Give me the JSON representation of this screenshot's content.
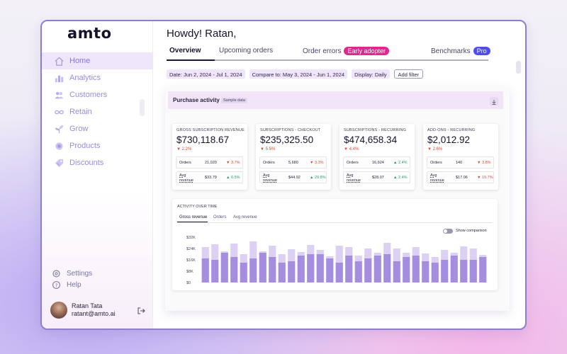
{
  "sidebar": {
    "logo": "amto",
    "nav": [
      {
        "label": "Home",
        "icon": "home-icon",
        "active": true
      },
      {
        "label": "Analytics",
        "icon": "bar-chart-icon"
      },
      {
        "label": "Customers",
        "icon": "users-icon"
      },
      {
        "label": "Retain",
        "icon": "infinity-icon"
      },
      {
        "label": "Grow",
        "icon": "sprout-icon"
      },
      {
        "label": "Products",
        "icon": "products-icon"
      },
      {
        "label": "Discounts",
        "icon": "tag-icon"
      }
    ],
    "settings_label": "Settings",
    "help_label": "Help",
    "user": {
      "name": "Ratan Tata",
      "email": "ratant@amto.ai"
    }
  },
  "header": {
    "greeting": "Howdy! Ratan,",
    "tabs": {
      "overview": "Overview",
      "upcoming": "Upcoming orders",
      "errors": "Order errors",
      "errors_badge": "Early adopter",
      "benchmarks": "Benchmarks",
      "benchmarks_badge": "Pro"
    }
  },
  "filters": {
    "date": "Date: Jun 2, 2024 - Jul 1, 2024",
    "compare": "Compare to: May 3, 2024 - Jun 1, 2024",
    "display": "Display: Daily",
    "add_filter": "Add filter"
  },
  "purchase": {
    "title": "Purchase activity",
    "badge": "Sample data"
  },
  "cards": [
    {
      "title": "GROSS SUBSCRIPTION REVENUE",
      "value": "$730,118.67",
      "change": "2.2%",
      "dir": "down",
      "rows": [
        {
          "label": "Orders",
          "value": "21,020",
          "change": "3.7%",
          "dir": "down"
        },
        {
          "label": "Avg revenue",
          "value": "$33.79",
          "change": "0.5%",
          "dir": "up"
        }
      ]
    },
    {
      "title": "SUBSCRIPTIONS - CHECKOUT",
      "value": "$235,325.50",
      "change": "5.5%",
      "dir": "down",
      "rows": [
        {
          "label": "Orders",
          "value": "5,680",
          "change": "3.3%",
          "dir": "down"
        },
        {
          "label": "Avg revenue",
          "value": "$44.92",
          "change": "29.8%",
          "dir": "up"
        }
      ]
    },
    {
      "title": "SUBSCRIPTIONS - RECURRING",
      "value": "$474,658.34",
      "change": "4.4%",
      "dir": "down",
      "rows": [
        {
          "label": "Orders",
          "value": "16,924",
          "change": "2.4%",
          "dir": "up"
        },
        {
          "label": "Avg revenue",
          "value": "$28.07",
          "change": "2.4%",
          "dir": "up"
        }
      ]
    },
    {
      "title": "ADD-ONS - RECURRING",
      "value": "$2,012.92",
      "change": "2.6%",
      "dir": "down",
      "rows": [
        {
          "label": "Orders",
          "value": "140",
          "change": "3.8%",
          "dir": "down"
        },
        {
          "label": "Avg revenue",
          "value": "$17.06",
          "change": "19.7%",
          "dir": "down"
        }
      ]
    }
  ],
  "activity": {
    "title": "ACTIVITY OVER TIME",
    "tabs": [
      "Gross revenue",
      "Orders",
      "Avg revenue"
    ],
    "toggle_label": "Show comparison"
  },
  "chart_data": {
    "type": "bar",
    "ylabels": [
      "$32K",
      "$24K",
      "$16K",
      "$8K",
      "$0"
    ],
    "ylim": [
      0,
      32000
    ],
    "series": [
      {
        "values": [
          25000,
          27000,
          22000,
          27500,
          20000,
          29000,
          22000,
          26000,
          20000,
          23500,
          21500,
          26500,
          23000,
          18500,
          26000,
          25000,
          19000,
          24000,
          21000,
          28000,
          24000,
          21000,
          25000,
          20500,
          18000,
          23000,
          21000,
          25500,
          24000,
          19500
        ]
      },
      {
        "values": [
          17000,
          16000,
          21000,
          18000,
          14000,
          17000,
          21000,
          18000,
          14000,
          15000,
          19000,
          20000,
          20000,
          17000,
          14000,
          19000,
          15000,
          17000,
          19000,
          20000,
          15000,
          18000,
          19000,
          15000,
          14000,
          16000,
          19000,
          16000,
          16000,
          18000
        ]
      }
    ],
    "colors": [
      "#dcd1f3",
      "#a58ee0"
    ]
  }
}
